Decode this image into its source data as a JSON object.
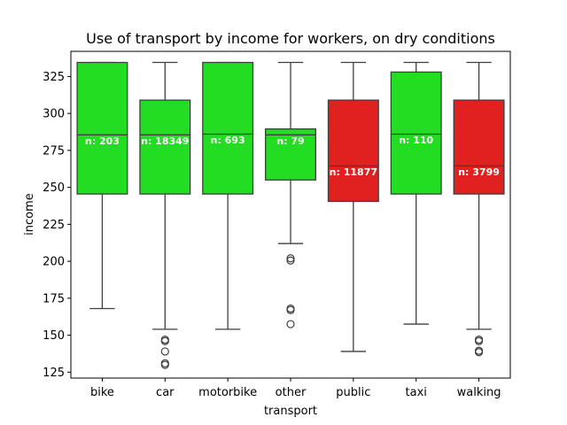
{
  "chart_data": {
    "type": "box",
    "title": "Use of transport by income for workers, on dry conditions",
    "xlabel": "transport",
    "ylabel": "income",
    "ylim": [
      121,
      342
    ],
    "yticks": [
      125,
      150,
      175,
      200,
      225,
      250,
      275,
      300,
      325
    ],
    "colors": {
      "green": "#22dd22",
      "red": "#e12020",
      "line": "#3f3f3f"
    },
    "categories": [
      "bike",
      "car",
      "motorbike",
      "other",
      "public",
      "taxi",
      "walking"
    ],
    "boxes": [
      {
        "category": "bike",
        "color": "green",
        "q1": 245.5,
        "median": 285.5,
        "q3": 334.5,
        "whisker_low": 168,
        "whisker_high": 334.5,
        "outliers": [],
        "n_label": "n: 203"
      },
      {
        "category": "car",
        "color": "green",
        "q1": 245.5,
        "median": 285.5,
        "q3": 309,
        "whisker_low": 154,
        "whisker_high": 334.5,
        "outliers": [
          147,
          146,
          139,
          131,
          130
        ],
        "n_label": "n: 18349"
      },
      {
        "category": "motorbike",
        "color": "green",
        "q1": 245.5,
        "median": 286,
        "q3": 334.5,
        "whisker_low": 154,
        "whisker_high": 334.5,
        "outliers": [],
        "n_label": "n: 693"
      },
      {
        "category": "other",
        "color": "green",
        "q1": 255,
        "median": 285.5,
        "q3": 289.5,
        "whisker_low": 212,
        "whisker_high": 334.5,
        "outliers": [
          202,
          200.5,
          168,
          167,
          157.5
        ],
        "n_label": "n: 79"
      },
      {
        "category": "public",
        "color": "red",
        "q1": 240.5,
        "median": 264.5,
        "q3": 309,
        "whisker_low": 139,
        "whisker_high": 334.5,
        "outliers": [],
        "n_label": "n: 11877"
      },
      {
        "category": "taxi",
        "color": "green",
        "q1": 245.5,
        "median": 286,
        "q3": 328,
        "whisker_low": 157.5,
        "whisker_high": 334.5,
        "outliers": [],
        "n_label": "n: 110"
      },
      {
        "category": "walking",
        "color": "red",
        "q1": 245.5,
        "median": 264.5,
        "q3": 309,
        "whisker_low": 154,
        "whisker_high": 334.5,
        "outliers": [
          147,
          146,
          139.5,
          138.5
        ],
        "n_label": "n: 3799"
      }
    ]
  }
}
